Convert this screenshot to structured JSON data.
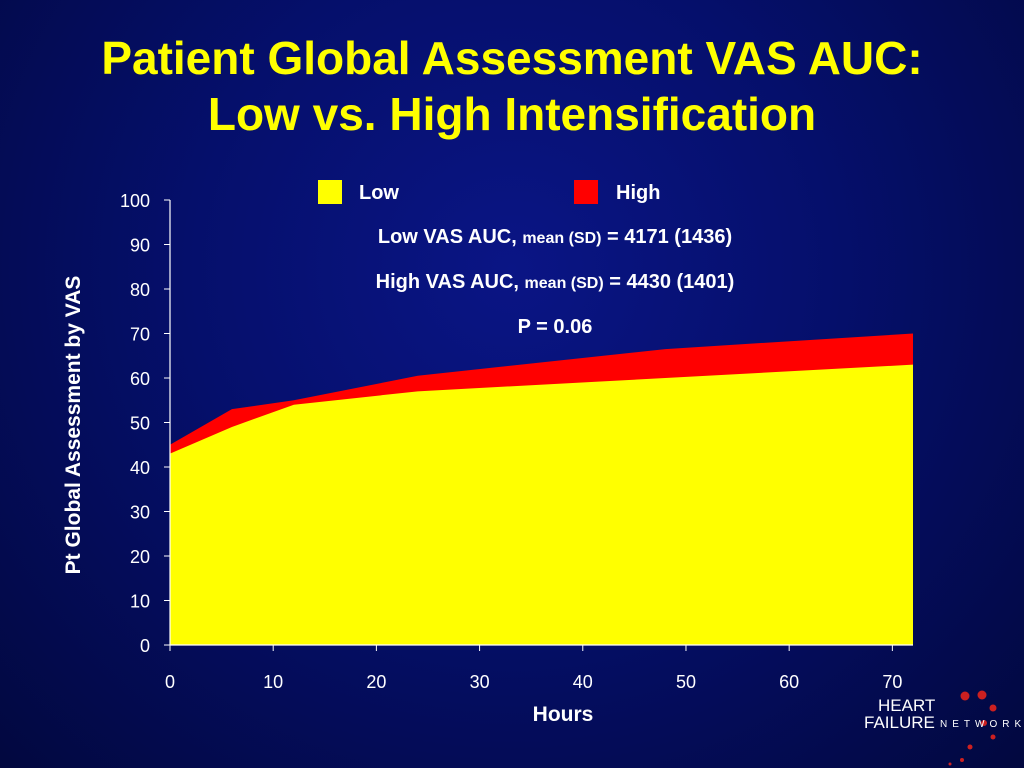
{
  "slide": {
    "title_line1": "Patient Global Assessment VAS AUC:",
    "title_line2": "Low vs. High Intensification"
  },
  "colors": {
    "background": "#05106b",
    "title": "#ffff00",
    "text": "#ffffff",
    "low": "#ffff00",
    "high": "#ff0000"
  },
  "chart_data": {
    "type": "area",
    "xlabel": "Hours",
    "ylabel": "Pt Global Assessment by VAS",
    "xlim": [
      0,
      72
    ],
    "ylim": [
      0,
      100
    ],
    "xticks": [
      0,
      10,
      20,
      30,
      40,
      50,
      60,
      70
    ],
    "yticks": [
      0,
      10,
      20,
      30,
      40,
      50,
      60,
      70,
      80,
      90,
      100
    ],
    "grid": false,
    "legend_position": "top",
    "x": [
      0,
      6,
      12,
      24,
      48,
      72
    ],
    "series": [
      {
        "name": "Low",
        "color": "#ffff00",
        "values": [
          43,
          49,
          54,
          57,
          60,
          63
        ]
      },
      {
        "name": "High",
        "color": "#ff0000",
        "values": [
          45,
          53,
          55,
          60.5,
          66.5,
          70
        ]
      }
    ],
    "annotations": [
      {
        "bold": "Low VAS AUC, ",
        "small": "mean (SD)",
        "rest": " = 4171 (1436)"
      },
      {
        "bold": "High VAS AUC, ",
        "small": "mean (SD)",
        "rest": " = 4430 (1401)"
      },
      {
        "bold": "P = 0.06",
        "small": "",
        "rest": ""
      }
    ]
  },
  "logo": {
    "line1": "HEART",
    "line2": "FAILURE",
    "suffix": "NETWORK"
  }
}
